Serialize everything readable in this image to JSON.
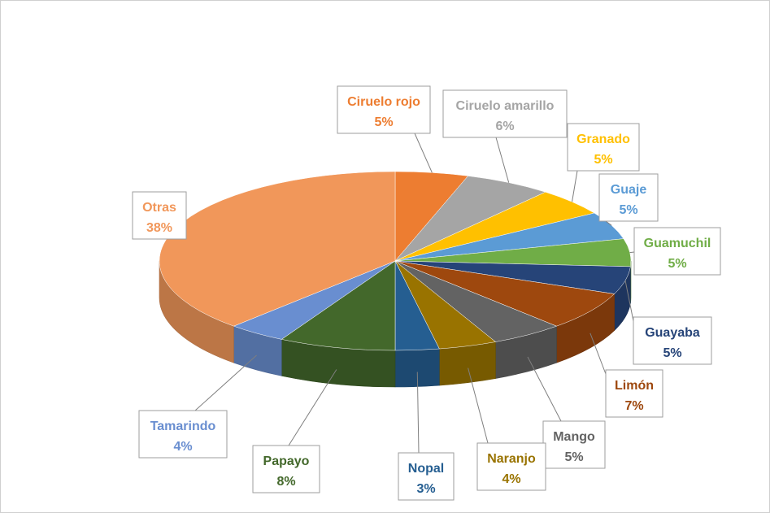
{
  "chart_data": {
    "type": "pie",
    "style": "3d-exploded-none",
    "title": "",
    "slices": [
      {
        "label": "Ciruelo rojo",
        "pct_text": "5%",
        "value": 5,
        "color": "#ED7D31",
        "text_color": "#ED7D31"
      },
      {
        "label": "Ciruelo amarillo",
        "pct_text": "6%",
        "value": 6,
        "color": "#A5A5A5",
        "text_color": "#A5A5A5"
      },
      {
        "label": "Granado",
        "pct_text": "5%",
        "value": 5,
        "color": "#FFC000",
        "text_color": "#FFC000"
      },
      {
        "label": "Guaje",
        "pct_text": "5%",
        "value": 5,
        "color": "#5B9BD5",
        "text_color": "#5B9BD5"
      },
      {
        "label": "Guamuchil",
        "pct_text": "5%",
        "value": 5,
        "color": "#70AD47",
        "text_color": "#70AD47"
      },
      {
        "label": "Guayaba",
        "pct_text": "5%",
        "value": 5,
        "color": "#264478",
        "text_color": "#264478"
      },
      {
        "label": "Limón",
        "pct_text": "7%",
        "value": 7,
        "color": "#9E480E",
        "text_color": "#9E480E"
      },
      {
        "label": "Mango",
        "pct_text": "5%",
        "value": 5,
        "color": "#636363",
        "text_color": "#636363"
      },
      {
        "label": "Naranjo",
        "pct_text": "4%",
        "value": 4,
        "color": "#997300",
        "text_color": "#997300"
      },
      {
        "label": "Nopal",
        "pct_text": "3%",
        "value": 3,
        "color": "#255E91",
        "text_color": "#255E91"
      },
      {
        "label": "Papayo",
        "pct_text": "8%",
        "value": 8,
        "color": "#43682B",
        "text_color": "#43682B"
      },
      {
        "label": "Tamarindo",
        "pct_text": "4%",
        "value": 4,
        "color": "#698ED0",
        "text_color": "#698ED0"
      },
      {
        "label": "Otras",
        "pct_text": "38%",
        "value": 38,
        "color": "#F1975A",
        "text_color": "#F1975A"
      }
    ],
    "legend": "none",
    "data_labels": "callout-boxes"
  }
}
